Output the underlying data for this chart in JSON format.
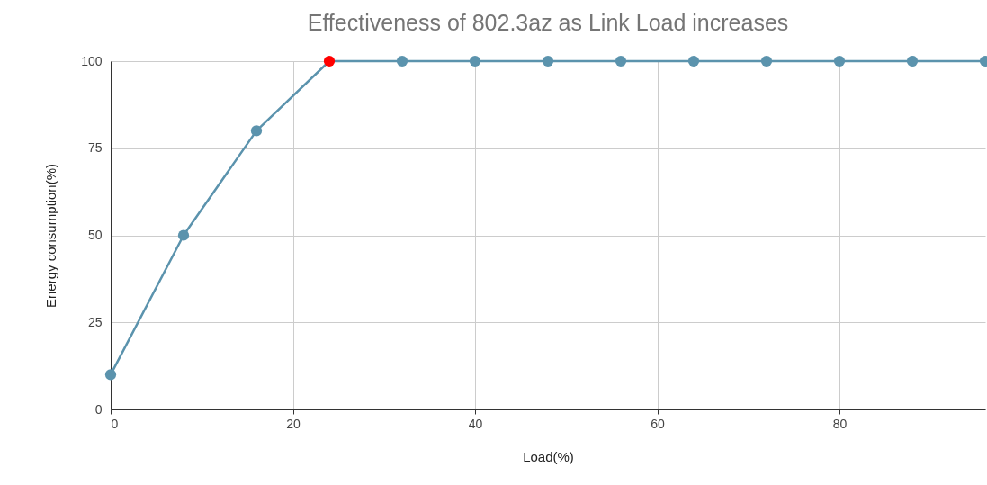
{
  "chart_data": {
    "type": "line",
    "title": "Effectiveness of 802.3az as Link Load increases",
    "xlabel": "Load(%)",
    "ylabel": "Energy consumption(%)",
    "x": [
      0,
      8,
      16,
      24,
      32,
      40,
      48,
      56,
      64,
      72,
      80,
      88,
      96
    ],
    "series": [
      {
        "color": "#5b93ad",
        "colors": [
          "#5b93ad",
          "#5b93ad",
          "#5b93ad",
          "#ff0000",
          "#5b93ad",
          "#5b93ad",
          "#5b93ad",
          "#5b93ad",
          "#5b93ad",
          "#5b93ad",
          "#5b93ad",
          "#5b93ad",
          "#5b93ad"
        ],
        "values": [
          10,
          50,
          80,
          100,
          100,
          100,
          100,
          100,
          100,
          100,
          100,
          100,
          100
        ]
      }
    ],
    "xlim": [
      0,
      96
    ],
    "xticks": [
      0,
      20,
      40,
      60,
      80
    ],
    "ylim": [
      0,
      100
    ],
    "yticks": [
      0,
      25,
      50,
      75,
      100
    ],
    "grid": true,
    "marker": "circle"
  }
}
